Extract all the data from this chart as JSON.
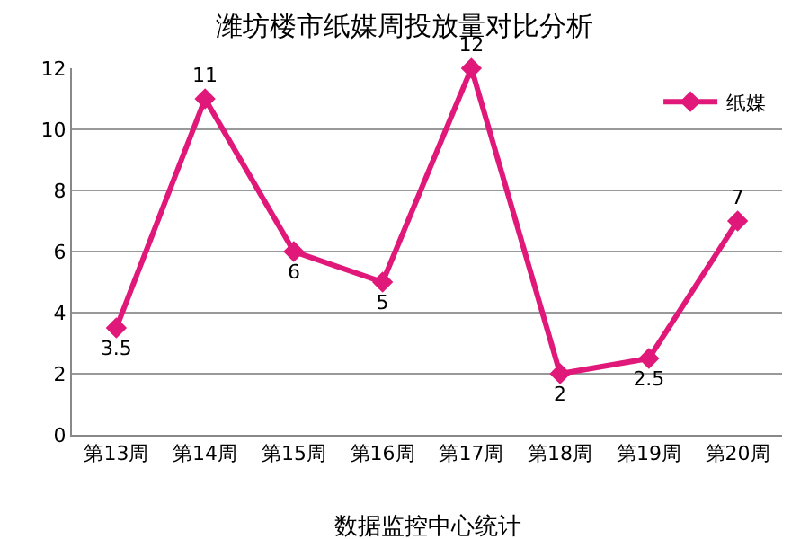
{
  "chart_data": {
    "type": "line",
    "title": "潍坊楼市纸媒周投放量对比分析",
    "categories": [
      "第13周",
      "第14周",
      "第15周",
      "第16周",
      "第17周",
      "第18周",
      "第19周",
      "第20周"
    ],
    "series": [
      {
        "name": "纸媒",
        "color": "#e0187a",
        "values": [
          3.5,
          11,
          6,
          5,
          12,
          2,
          2.5,
          7
        ]
      }
    ],
    "ylim": [
      0,
      12
    ],
    "yticks": [
      0,
      2,
      4,
      6,
      8,
      10,
      12
    ],
    "grid": "y",
    "legend": "top right",
    "marker": "diamond",
    "line_style": "solid",
    "data_labels": true,
    "annotations": [
      "数据监控中心统计"
    ]
  }
}
